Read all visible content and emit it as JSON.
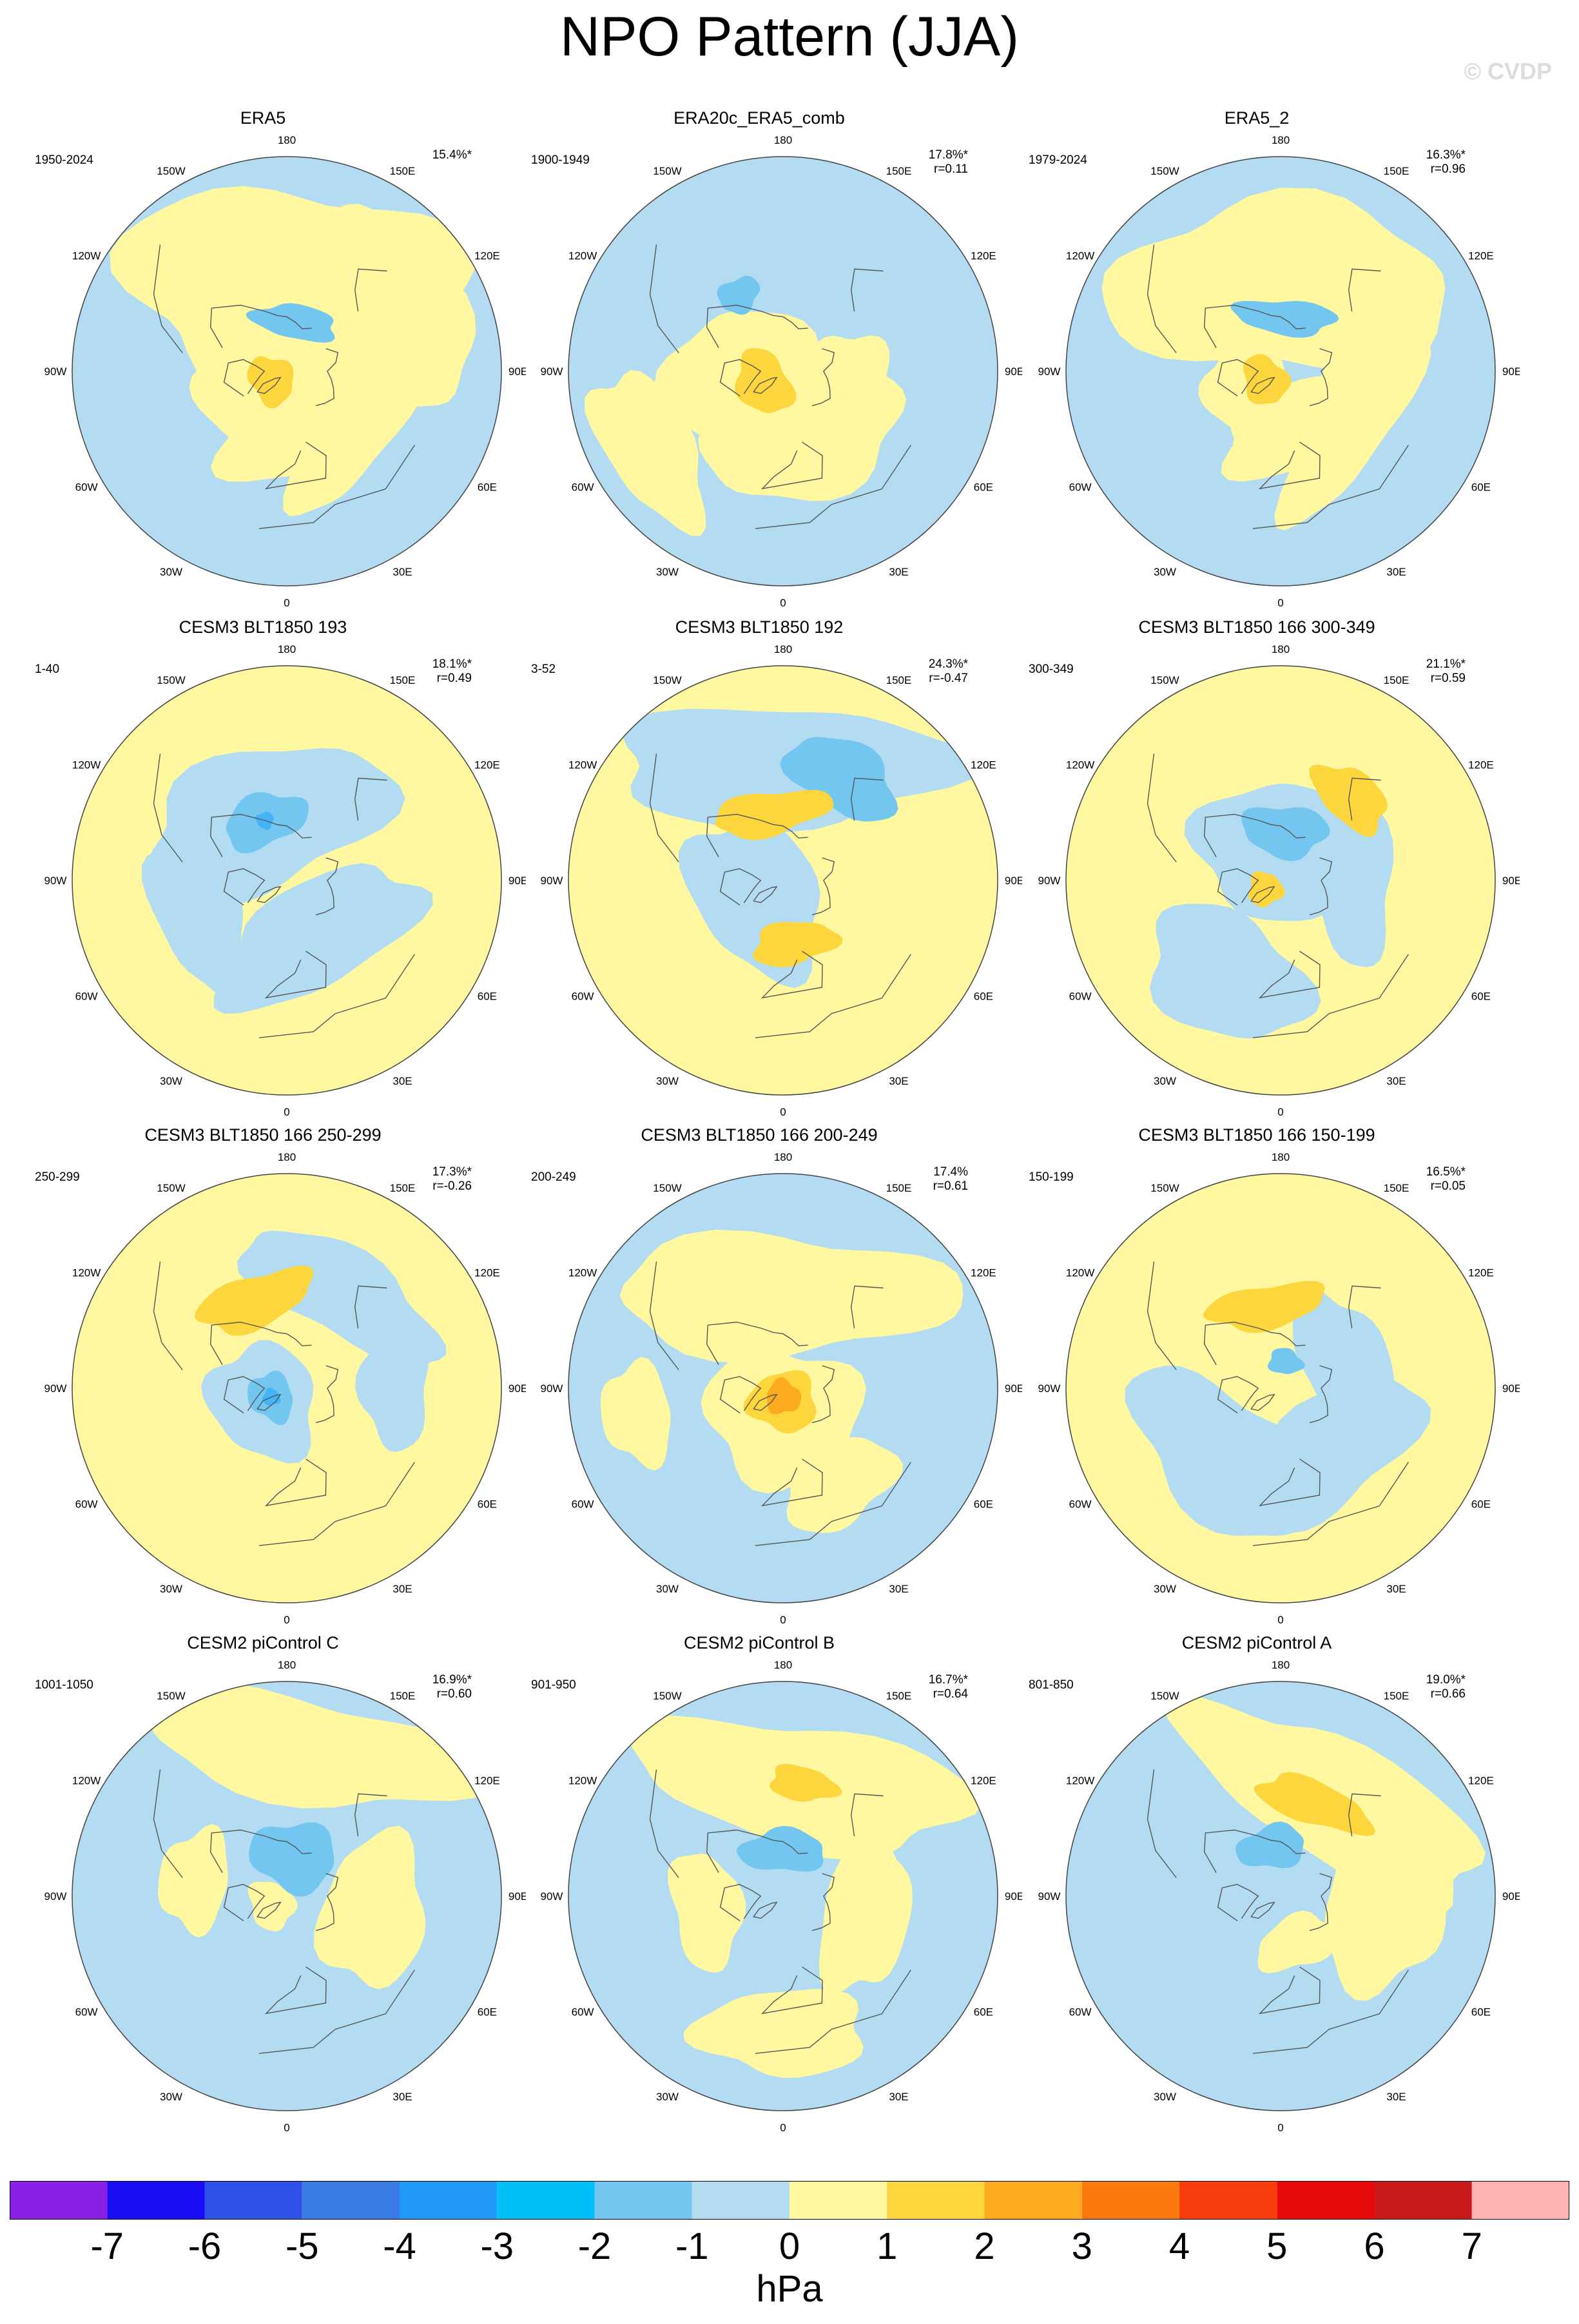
{
  "title": "NPO Pattern (JJA)",
  "watermark": "© CVDP",
  "colors": {
    "neg1": "#b3dcf2",
    "neg2": "#73c6f0",
    "neg3": "#45b3f5",
    "pos1": "#fff8a0",
    "pos2": "#fdd53c",
    "pos3": "#fcaa1e",
    "coast": "#555555",
    "frame": "#444444"
  },
  "longitude_labels": [
    "180",
    "150E",
    "120E",
    "90E",
    "60E",
    "30E",
    "0",
    "30W",
    "60W",
    "90W",
    "120W",
    "150W"
  ],
  "chart_data": [
    {
      "type": "heatmap",
      "projection": "polar-stereographic",
      "title": "ERA5",
      "period": "1950-2024",
      "variance_explained": "15.4%*",
      "pattern_correlation": "",
      "background": "neg1",
      "features": [
        {
          "level": "pos1",
          "lon": 175,
          "colat": 36,
          "rx": 40,
          "ry": 24
        },
        {
          "level": "pos1",
          "lon": 120,
          "colat": 52,
          "rx": 26,
          "ry": 14
        },
        {
          "level": "pos1",
          "lon": 60,
          "colat": 36,
          "rx": 26,
          "ry": 10
        },
        {
          "level": "pos1",
          "lon": 20,
          "colat": 24,
          "rx": 22,
          "ry": 12
        },
        {
          "level": "pos1",
          "lon": 300,
          "colat": 18,
          "rx": 14,
          "ry": 12
        },
        {
          "level": "pos1",
          "lon": 330,
          "colat": 8,
          "rx": 8,
          "ry": 8
        },
        {
          "level": "pos2",
          "lon": 300,
          "colat": 8,
          "rx": 6,
          "ry": 5
        },
        {
          "level": "neg2",
          "lon": 170,
          "colat": 22,
          "rx": 10,
          "ry": 4
        }
      ]
    },
    {
      "type": "heatmap",
      "projection": "polar-stereographic",
      "title": "ERA20c_ERA5_comb",
      "period": "1900-1949",
      "variance_explained": "17.8%*",
      "pattern_correlation": "r=0.11",
      "background": "neg1",
      "features": [
        {
          "level": "pos1",
          "lon": 300,
          "colat": 18,
          "rx": 20,
          "ry": 18
        },
        {
          "level": "pos1",
          "lon": 20,
          "colat": 30,
          "rx": 24,
          "ry": 14
        },
        {
          "level": "pos1",
          "lon": 80,
          "colat": 28,
          "rx": 12,
          "ry": 10
        },
        {
          "level": "pos1",
          "lon": 300,
          "colat": 62,
          "rx": 20,
          "ry": 10
        },
        {
          "level": "pos2",
          "lon": 300,
          "colat": 10,
          "rx": 8,
          "ry": 6
        },
        {
          "level": "neg2",
          "lon": 210,
          "colat": 38,
          "rx": 5,
          "ry": 4
        }
      ]
    },
    {
      "type": "heatmap",
      "projection": "polar-stereographic",
      "title": "ERA5_2",
      "period": "1979-2024",
      "variance_explained": "16.3%*",
      "pattern_correlation": "r=0.96",
      "background": "neg1",
      "features": [
        {
          "level": "pos1",
          "lon": 180,
          "colat": 36,
          "rx": 40,
          "ry": 20
        },
        {
          "level": "pos1",
          "lon": 60,
          "colat": 36,
          "rx": 28,
          "ry": 10
        },
        {
          "level": "pos1",
          "lon": 20,
          "colat": 26,
          "rx": 20,
          "ry": 10
        },
        {
          "level": "pos1",
          "lon": 300,
          "colat": 16,
          "rx": 12,
          "ry": 10
        },
        {
          "level": "pos2",
          "lon": 300,
          "colat": 8,
          "rx": 6,
          "ry": 5
        },
        {
          "level": "neg2",
          "lon": 175,
          "colat": 24,
          "rx": 12,
          "ry": 4
        }
      ]
    },
    {
      "type": "heatmap",
      "projection": "polar-stereographic",
      "title": "CESM3 BLT1850 193",
      "period": "1-40",
      "variance_explained": "18.1%*",
      "pattern_correlation": "r=0.49",
      "background": "pos1",
      "features": [
        {
          "level": "neg1",
          "lon": 200,
          "colat": 28,
          "rx": 30,
          "ry": 16
        },
        {
          "level": "neg1",
          "lon": 30,
          "colat": 28,
          "rx": 26,
          "ry": 12
        },
        {
          "level": "neg1",
          "lon": 290,
          "colat": 40,
          "rx": 20,
          "ry": 10
        },
        {
          "level": "neg2",
          "lon": 200,
          "colat": 28,
          "rx": 10,
          "ry": 6
        },
        {
          "level": "neg3",
          "lon": 200,
          "colat": 28,
          "rx": 2,
          "ry": 2
        }
      ]
    },
    {
      "type": "heatmap",
      "projection": "polar-stereographic",
      "title": "CESM3 BLT1850 192",
      "period": "3-52",
      "variance_explained": "24.3%*",
      "pattern_correlation": "r=-0.47",
      "background": "pos1",
      "features": [
        {
          "level": "neg1",
          "lon": 180,
          "colat": 48,
          "rx": 40,
          "ry": 14
        },
        {
          "level": "neg1",
          "lon": 300,
          "colat": 14,
          "rx": 20,
          "ry": 14
        },
        {
          "level": "neg2",
          "lon": 150,
          "colat": 50,
          "rx": 14,
          "ry": 8
        },
        {
          "level": "pos2",
          "lon": 190,
          "colat": 30,
          "rx": 14,
          "ry": 5
        },
        {
          "level": "pos2",
          "lon": 10,
          "colat": 28,
          "rx": 10,
          "ry": 5
        }
      ]
    },
    {
      "type": "heatmap",
      "projection": "polar-stereographic",
      "title": "CESM3 BLT1850 166 300-349",
      "period": "300-349",
      "variance_explained": "21.1%*",
      "pattern_correlation": "r=0.59",
      "background": "pos1",
      "features": [
        {
          "level": "neg1",
          "lon": 180,
          "colat": 14,
          "rx": 20,
          "ry": 16
        },
        {
          "level": "neg1",
          "lon": 330,
          "colat": 46,
          "rx": 20,
          "ry": 14
        },
        {
          "level": "neg1",
          "lon": 100,
          "colat": 30,
          "rx": 22,
          "ry": 10
        },
        {
          "level": "neg2",
          "lon": 175,
          "colat": 22,
          "rx": 10,
          "ry": 6
        },
        {
          "level": "pos2",
          "lon": 140,
          "colat": 46,
          "rx": 10,
          "ry": 6
        },
        {
          "level": "pos2",
          "lon": 300,
          "colat": 8,
          "rx": 4,
          "ry": 4
        }
      ]
    },
    {
      "type": "heatmap",
      "projection": "polar-stereographic",
      "title": "CESM3 BLT1850 166 250-299",
      "period": "250-299",
      "variance_explained": "17.3%*",
      "pattern_correlation": "r=-0.26",
      "background": "pos1",
      "features": [
        {
          "level": "neg1",
          "lon": 300,
          "colat": 12,
          "rx": 14,
          "ry": 12
        },
        {
          "level": "neg1",
          "lon": 150,
          "colat": 46,
          "rx": 26,
          "ry": 10
        },
        {
          "level": "neg1",
          "lon": 90,
          "colat": 46,
          "rx": 14,
          "ry": 8
        },
        {
          "level": "neg2",
          "lon": 300,
          "colat": 8,
          "rx": 6,
          "ry": 5
        },
        {
          "level": "neg3",
          "lon": 300,
          "colat": 8,
          "rx": 2,
          "ry": 2
        },
        {
          "level": "pos2",
          "lon": 200,
          "colat": 40,
          "rx": 14,
          "ry": 6
        }
      ]
    },
    {
      "type": "heatmap",
      "projection": "polar-stereographic",
      "title": "CESM3 BLT1850 166 200-249",
      "period": "200-249",
      "variance_explained": "17.4%",
      "pattern_correlation": "r=0.61",
      "background": "neg1",
      "features": [
        {
          "level": "pos1",
          "lon": 0,
          "colat": 12,
          "rx": 18,
          "ry": 16
        },
        {
          "level": "pos1",
          "lon": 180,
          "colat": 40,
          "rx": 40,
          "ry": 14
        },
        {
          "level": "pos1",
          "lon": 30,
          "colat": 46,
          "rx": 14,
          "ry": 10
        },
        {
          "level": "pos1",
          "lon": 280,
          "colat": 60,
          "rx": 12,
          "ry": 8
        },
        {
          "level": "pos2",
          "lon": 0,
          "colat": 6,
          "rx": 8,
          "ry": 7
        },
        {
          "level": "pos3",
          "lon": 0,
          "colat": 4,
          "rx": 4,
          "ry": 4
        }
      ]
    },
    {
      "type": "heatmap",
      "projection": "polar-stereographic",
      "title": "CESM3 BLT1850 166 150-199",
      "period": "150-199",
      "variance_explained": "16.5%*",
      "pattern_correlation": "r=0.05",
      "background": "pos1",
      "features": [
        {
          "level": "neg1",
          "lon": 320,
          "colat": 38,
          "rx": 26,
          "ry": 14
        },
        {
          "level": "neg1",
          "lon": 40,
          "colat": 36,
          "rx": 24,
          "ry": 12
        },
        {
          "level": "neg1",
          "lon": 120,
          "colat": 30,
          "rx": 16,
          "ry": 10
        },
        {
          "level": "neg2",
          "lon": 170,
          "colat": 12,
          "rx": 4,
          "ry": 3
        },
        {
          "level": "pos2",
          "lon": 190,
          "colat": 36,
          "rx": 14,
          "ry": 5
        }
      ]
    },
    {
      "type": "heatmap",
      "projection": "polar-stereographic",
      "title": "CESM2 piControl C",
      "period": "1001-1050",
      "variance_explained": "16.9%*",
      "pattern_correlation": "r=0.60",
      "background": "neg1",
      "features": [
        {
          "level": "pos1",
          "lon": 170,
          "colat": 60,
          "rx": 40,
          "ry": 12
        },
        {
          "level": "pos1",
          "lon": 80,
          "colat": 38,
          "rx": 18,
          "ry": 12
        },
        {
          "level": "pos1",
          "lon": 260,
          "colat": 40,
          "rx": 12,
          "ry": 8
        },
        {
          "level": "pos1",
          "lon": 300,
          "colat": 8,
          "rx": 6,
          "ry": 5
        },
        {
          "level": "neg2",
          "lon": 170,
          "colat": 18,
          "rx": 10,
          "ry": 8
        }
      ]
    },
    {
      "type": "heatmap",
      "projection": "polar-stereographic",
      "title": "CESM2 piControl B",
      "period": "901-950",
      "variance_explained": "16.7%*",
      "pattern_correlation": "r=0.64",
      "background": "neg1",
      "features": [
        {
          "level": "pos1",
          "lon": 170,
          "colat": 48,
          "rx": 40,
          "ry": 14
        },
        {
          "level": "pos1",
          "lon": 80,
          "colat": 36,
          "rx": 20,
          "ry": 10
        },
        {
          "level": "pos1",
          "lon": 0,
          "colat": 56,
          "rx": 20,
          "ry": 10
        },
        {
          "level": "pos1",
          "lon": 280,
          "colat": 34,
          "rx": 14,
          "ry": 8
        },
        {
          "level": "neg2",
          "lon": 180,
          "colat": 20,
          "rx": 10,
          "ry": 5
        },
        {
          "level": "pos2",
          "lon": 170,
          "colat": 48,
          "rx": 8,
          "ry": 4
        }
      ]
    },
    {
      "type": "heatmap",
      "projection": "polar-stereographic",
      "title": "CESM2 piControl A",
      "period": "801-850",
      "variance_explained": "19.0%*",
      "pattern_correlation": "r=0.66",
      "background": "neg1",
      "features": [
        {
          "level": "pos1",
          "lon": 150,
          "colat": 46,
          "rx": 40,
          "ry": 14
        },
        {
          "level": "pos1",
          "lon": 80,
          "colat": 44,
          "rx": 18,
          "ry": 14
        },
        {
          "level": "pos1",
          "lon": 20,
          "colat": 22,
          "rx": 10,
          "ry": 6
        },
        {
          "level": "neg2",
          "lon": 190,
          "colat": 22,
          "rx": 8,
          "ry": 5
        },
        {
          "level": "pos2",
          "lon": 160,
          "colat": 42,
          "rx": 14,
          "ry": 5
        }
      ]
    }
  ],
  "colorbar": {
    "units": "hPa",
    "labels": [
      "-7",
      "-6",
      "-5",
      "-4",
      "-3",
      "-2",
      "-1",
      "0",
      "1",
      "2",
      "3",
      "4",
      "5",
      "6",
      "7"
    ],
    "colors": [
      "#8b1fe5",
      "#1a0cf5",
      "#2e4fe8",
      "#3a7be6",
      "#1f9af7",
      "#00c1f7",
      "#73c6f0",
      "#b3dcf2",
      "#fff8a0",
      "#fdd53c",
      "#fcaa1e",
      "#fb7a10",
      "#f83c0c",
      "#e80a0a",
      "#c81a1a",
      "#fbb3b3"
    ]
  }
}
